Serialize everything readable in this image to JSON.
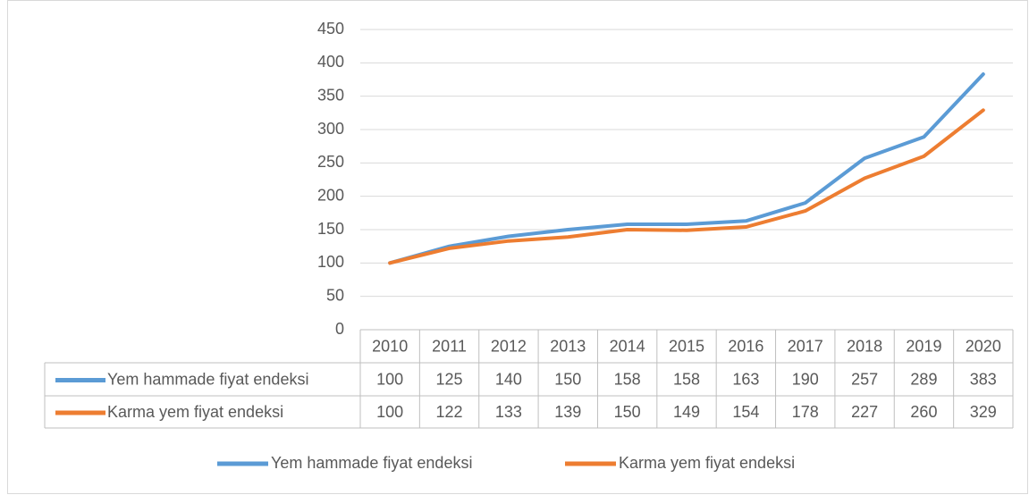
{
  "chart_data": {
    "type": "line",
    "categories": [
      "2010",
      "2011",
      "2012",
      "2013",
      "2014",
      "2015",
      "2016",
      "2017",
      "2018",
      "2019",
      "2020"
    ],
    "series": [
      {
        "name": "Yem hammade fiyat endeksi",
        "color": "#5b9bd5",
        "values": [
          100,
          125,
          140,
          150,
          158,
          158,
          163,
          190,
          257,
          289,
          383
        ]
      },
      {
        "name": "Karma yem fiyat endeksi",
        "color": "#ed7d31",
        "values": [
          100,
          122,
          133,
          139,
          150,
          149,
          154,
          178,
          227,
          260,
          329
        ]
      }
    ],
    "ylim": [
      0,
      450
    ],
    "yticks": [
      0,
      50,
      100,
      150,
      200,
      250,
      300,
      350,
      400,
      450
    ],
    "grid": true,
    "data_table": true,
    "legend": "bottom"
  }
}
